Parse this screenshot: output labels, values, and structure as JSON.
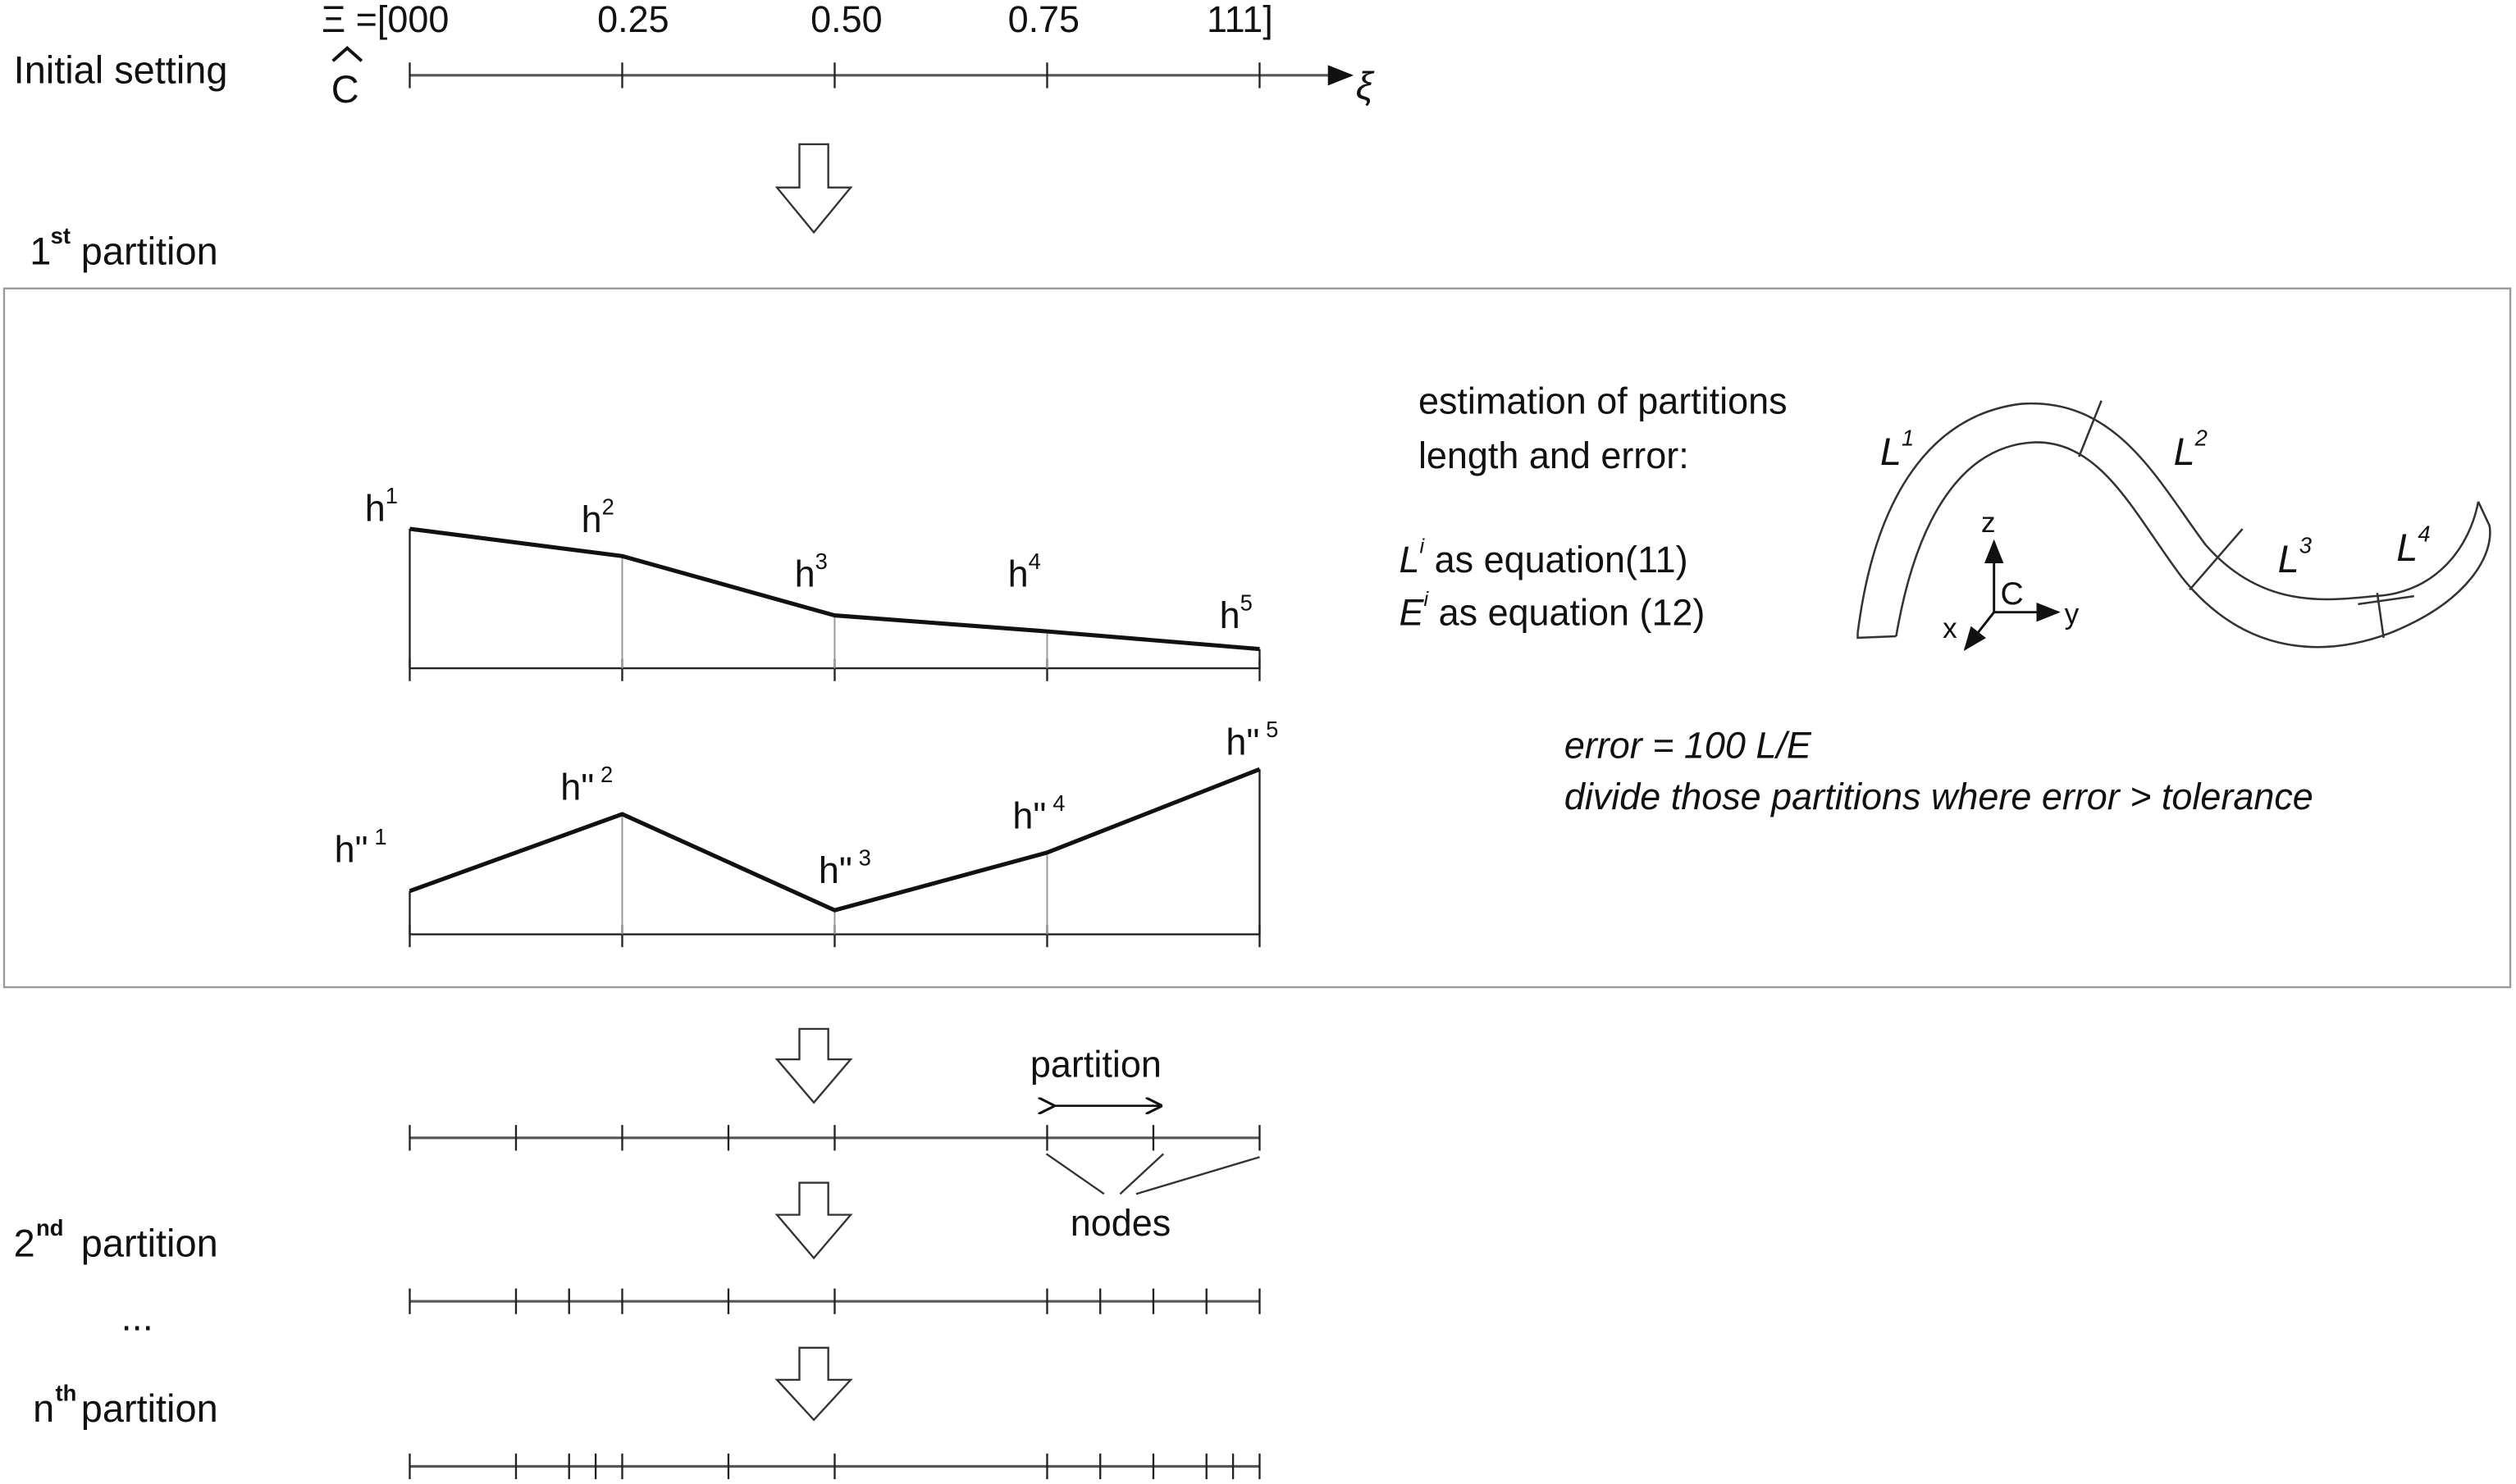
{
  "initial": {
    "label": "Initial setting",
    "knot_prefix": "Ξ =[000",
    "knot_labels": [
      "0.25",
      "0.50",
      "0.75"
    ],
    "knot_suffix": "111]",
    "curve_symbol": "C",
    "axis_symbol": "ξ",
    "knots": [
      0,
      0.25,
      0.5,
      0.75,
      1
    ]
  },
  "first": {
    "label_num": "1",
    "label_sup": "st",
    "label_text": "partition",
    "h_labels": [
      "h",
      "h",
      "h",
      "h",
      "h"
    ],
    "h_sups": [
      "1",
      "2",
      "3",
      "4",
      "5"
    ],
    "hpp_labels": [
      "h\"",
      "h\"",
      "h\"",
      "h\"",
      "h\""
    ],
    "hpp_sups": [
      "1",
      "2",
      "3",
      "4",
      "5"
    ],
    "estimation_line1": "estimation of partitions",
    "estimation_line2": "length and error:",
    "li_text": " as equation(11)",
    "ei_text": " as equation (12)",
    "li_sym": "L",
    "ei_sym": "E",
    "i_sup": "i",
    "L_labels": [
      "1",
      "2",
      "3",
      "4"
    ],
    "axes": {
      "z": "z",
      "y": "y",
      "x": "x",
      "c": "C"
    },
    "error_formula": "error = 100 L/E",
    "error_rule": "divide those partitions where error > tolerance"
  },
  "second": {
    "label_num": "2",
    "label_sup": "nd",
    "label_text": " partition",
    "partition_label": "partition",
    "nodes_label": "nodes",
    "knots_a": [
      0,
      0.125,
      0.25,
      0.375,
      0.5,
      0.75,
      0.875,
      1
    ],
    "knots_b": [
      0,
      0.125,
      0.1875,
      0.25,
      0.375,
      0.5,
      0.75,
      0.8125,
      0.875,
      0.9375,
      1
    ]
  },
  "ellipsis": "...",
  "nth": {
    "label_num": "n",
    "label_sup": "th",
    "label_text": " partition",
    "knots": [
      0,
      0.125,
      0.1875,
      0.21875,
      0.25,
      0.375,
      0.5,
      0.75,
      0.8125,
      0.875,
      0.9375,
      0.96875,
      1
    ]
  }
}
